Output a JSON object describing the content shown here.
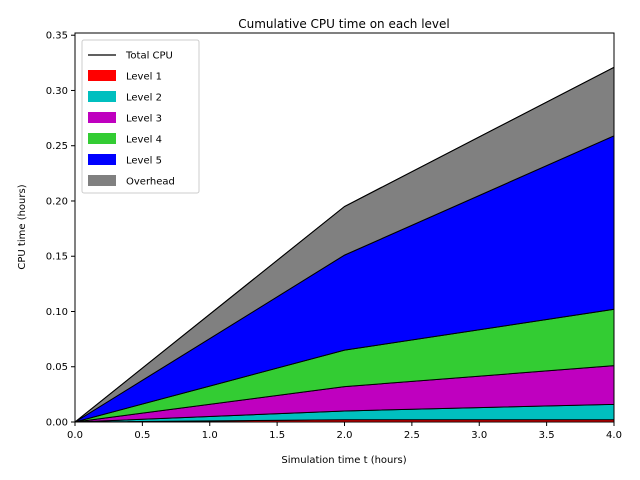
{
  "chart_data": {
    "type": "area",
    "title": "Cumulative CPU time on each level",
    "xlabel": "Simulation time t (hours)",
    "ylabel": "CPU time (hours)",
    "xlim": [
      0.0,
      4.0
    ],
    "ylim": [
      0.0,
      0.352
    ],
    "x_ticks": [
      "0.0",
      "0.5",
      "1.0",
      "1.5",
      "2.0",
      "2.5",
      "3.0",
      "3.5",
      "4.0"
    ],
    "y_ticks": [
      "0.00",
      "0.05",
      "0.10",
      "0.15",
      "0.20",
      "0.25",
      "0.30",
      "0.35"
    ],
    "x": [
      0.0,
      2.0,
      4.0
    ],
    "stacked": true,
    "legend_position": "upper-left",
    "total_line": {
      "name": "Total CPU",
      "color": "#000000",
      "values": [
        0.0,
        0.195,
        0.321
      ]
    },
    "series": [
      {
        "name": "Level 1",
        "color": "#ff0000",
        "values": [
          0.0,
          0.002,
          0.002
        ]
      },
      {
        "name": "Level 2",
        "color": "#00bfbf",
        "values": [
          0.0,
          0.008,
          0.014
        ]
      },
      {
        "name": "Level 3",
        "color": "#bf00bf",
        "values": [
          0.0,
          0.022,
          0.035
        ]
      },
      {
        "name": "Level 4",
        "color": "#33cc33",
        "values": [
          0.0,
          0.033,
          0.051
        ]
      },
      {
        "name": "Level 5",
        "color": "#0000ff",
        "values": [
          0.0,
          0.086,
          0.157
        ]
      },
      {
        "name": "Overhead",
        "color": "#808080",
        "values": [
          0.0,
          0.044,
          0.062
        ]
      }
    ]
  }
}
